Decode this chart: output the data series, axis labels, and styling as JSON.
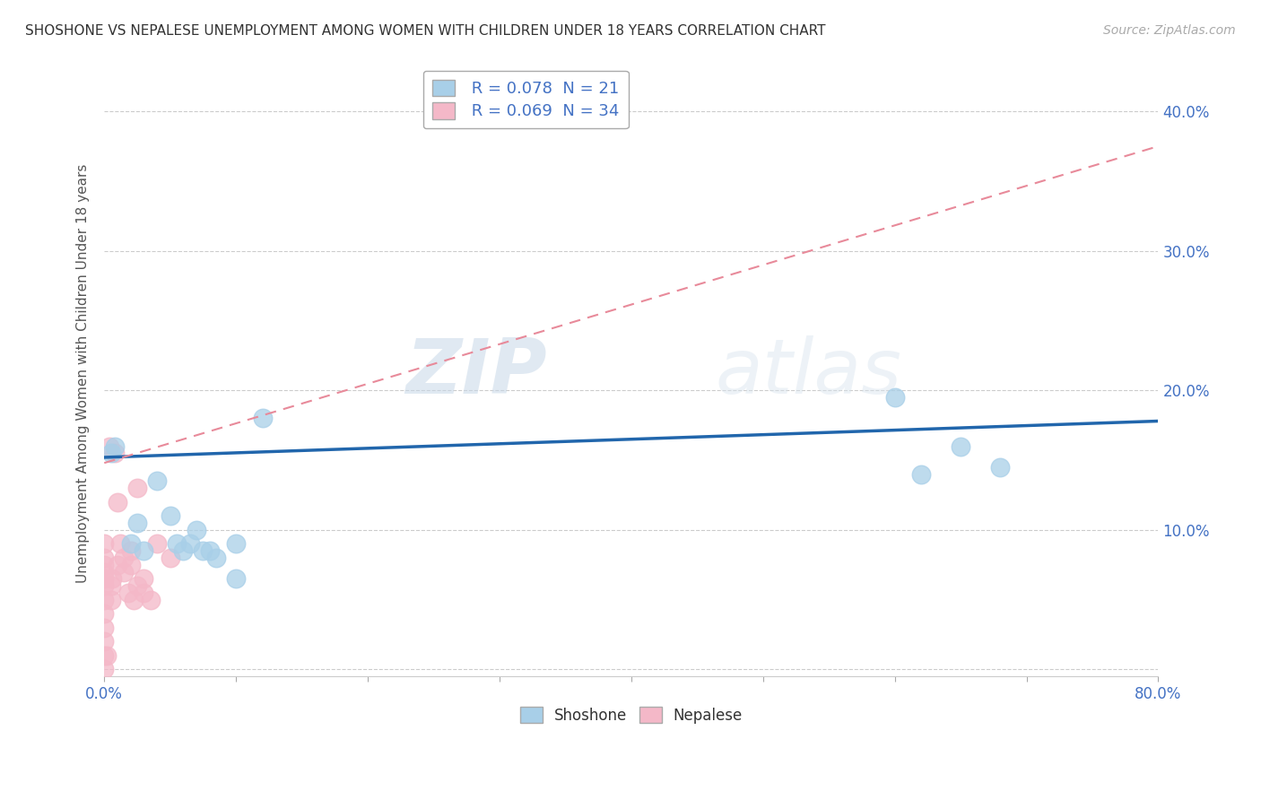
{
  "title": "SHOSHONE VS NEPALESE UNEMPLOYMENT AMONG WOMEN WITH CHILDREN UNDER 18 YEARS CORRELATION CHART",
  "source": "Source: ZipAtlas.com",
  "ylabel": "Unemployment Among Women with Children Under 18 years",
  "xlim": [
    0,
    0.8
  ],
  "ylim": [
    -0.005,
    0.43
  ],
  "legend_shoshone": "R = 0.078  N = 21",
  "legend_nepalese": "R = 0.069  N = 34",
  "shoshone_color": "#a8cfe8",
  "nepalese_color": "#f4b8c8",
  "shoshone_line_color": "#2166ac",
  "nepalese_line_color": "#e88a9a",
  "watermark_zip": "ZIP",
  "watermark_atlas": "atlas",
  "background_color": "#ffffff",
  "grid_color": "#cccccc",
  "shoshone_x": [
    0.005,
    0.008,
    0.02,
    0.025,
    0.03,
    0.04,
    0.05,
    0.055,
    0.06,
    0.065,
    0.07,
    0.075,
    0.08,
    0.085,
    0.1,
    0.1,
    0.12,
    0.6,
    0.62,
    0.65,
    0.68
  ],
  "shoshone_y": [
    0.155,
    0.16,
    0.09,
    0.105,
    0.085,
    0.135,
    0.11,
    0.09,
    0.085,
    0.09,
    0.1,
    0.085,
    0.085,
    0.08,
    0.09,
    0.065,
    0.18,
    0.195,
    0.14,
    0.16,
    0.145
  ],
  "nepalese_x": [
    0.0,
    0.0,
    0.0,
    0.0,
    0.0,
    0.0,
    0.0,
    0.0,
    0.0,
    0.0,
    0.0,
    0.0,
    0.002,
    0.004,
    0.005,
    0.005,
    0.006,
    0.008,
    0.01,
    0.01,
    0.012,
    0.015,
    0.015,
    0.018,
    0.02,
    0.02,
    0.022,
    0.025,
    0.025,
    0.03,
    0.03,
    0.035,
    0.04,
    0.05
  ],
  "nepalese_y": [
    0.0,
    0.01,
    0.02,
    0.03,
    0.04,
    0.05,
    0.06,
    0.065,
    0.07,
    0.075,
    0.08,
    0.09,
    0.01,
    0.16,
    0.05,
    0.06,
    0.065,
    0.155,
    0.075,
    0.12,
    0.09,
    0.07,
    0.08,
    0.055,
    0.075,
    0.085,
    0.05,
    0.06,
    0.13,
    0.055,
    0.065,
    0.05,
    0.09,
    0.08
  ],
  "shoshone_line_x0": 0.0,
  "shoshone_line_y0": 0.152,
  "shoshone_line_x1": 0.8,
  "shoshone_line_y1": 0.178,
  "nepalese_line_x0": 0.0,
  "nepalese_line_y0": 0.148,
  "nepalese_line_x1": 0.8,
  "nepalese_line_y1": 0.375
}
